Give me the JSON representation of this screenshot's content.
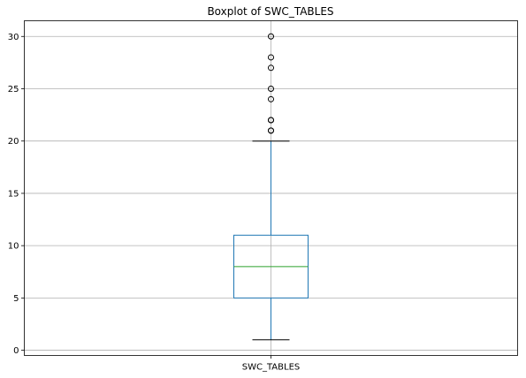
{
  "chart_data": {
    "type": "boxplot",
    "title": "Boxplot of SWC_TABLES",
    "categories": [
      "SWC_TABLES"
    ],
    "series": [
      {
        "name": "SWC_TABLES",
        "whisker_low": 1,
        "q1": 5,
        "median": 8,
        "q3": 11,
        "whisker_high": 20,
        "outliers": [
          21,
          21,
          22,
          22,
          24,
          25,
          27,
          28,
          30
        ]
      }
    ],
    "ylim": [
      -0.5,
      31.5
    ],
    "yticks": [
      0,
      5,
      10,
      15,
      20,
      25,
      30
    ],
    "xlabel": "",
    "ylabel": "",
    "grid": true,
    "colors": {
      "box": "#1f77b4",
      "median": "#2ca02c",
      "whisker": "#1f77b4",
      "cap": "#000000",
      "outlier_edge": "#000000",
      "grid": "#b0b0b0",
      "axes": "#000000"
    }
  }
}
